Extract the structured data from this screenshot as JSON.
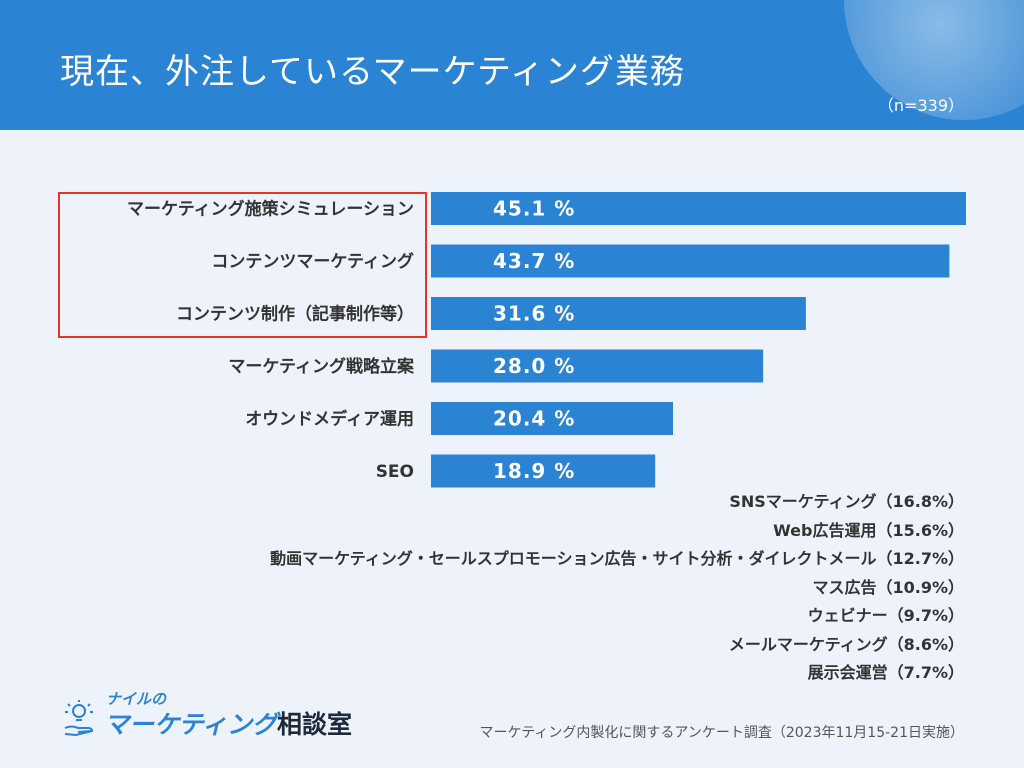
{
  "header": {
    "title": "現在、外注しているマーケティング業務",
    "sample": "（n=339）"
  },
  "chart_data": {
    "type": "bar",
    "orientation": "horizontal",
    "categories": [
      "マーケティング施策シミュレーション",
      "コンテンツマーケティング",
      "コンテンツ制作（記事制作等）",
      "マーケティング戦略立案",
      "オウンドメディア運用",
      "SEO"
    ],
    "values": [
      45.1,
      43.7,
      31.6,
      28.0,
      20.4,
      18.9
    ],
    "value_labels": [
      "45.1 %",
      "43.7 %",
      "31.6 %",
      "28.0 %",
      "20.4 %",
      "18.9 %"
    ],
    "unit": "%",
    "xlim": [
      0,
      45.1
    ],
    "grid": false,
    "bar_color": "#2b83d3",
    "highlighted_categories": [
      0,
      1,
      2
    ],
    "highlight_color": "#e8332c"
  },
  "others": [
    "SNSマーケティング（16.8%）",
    "Web広告運用（15.6%）",
    "動画マーケティング・セールスプロモーション広告・サイト分析・ダイレクトメール（12.7%）",
    "マス広告（10.9%）",
    "ウェビナー（9.7%）",
    "メールマーケティング（8.6%）",
    "展示会運営（7.7%）"
  ],
  "logo": {
    "sub": "ナイルの",
    "main": "マーケティング",
    "main_suffix": "相談室",
    "icon": "lightbulb-hand-icon"
  },
  "footer": {
    "source": "マーケティング内製化に関するアンケート調査（2023年11月15-21日実施）"
  },
  "colors": {
    "header_bg": "#2b83d3",
    "page_bg": "#eef3fb",
    "text": "#333333"
  }
}
